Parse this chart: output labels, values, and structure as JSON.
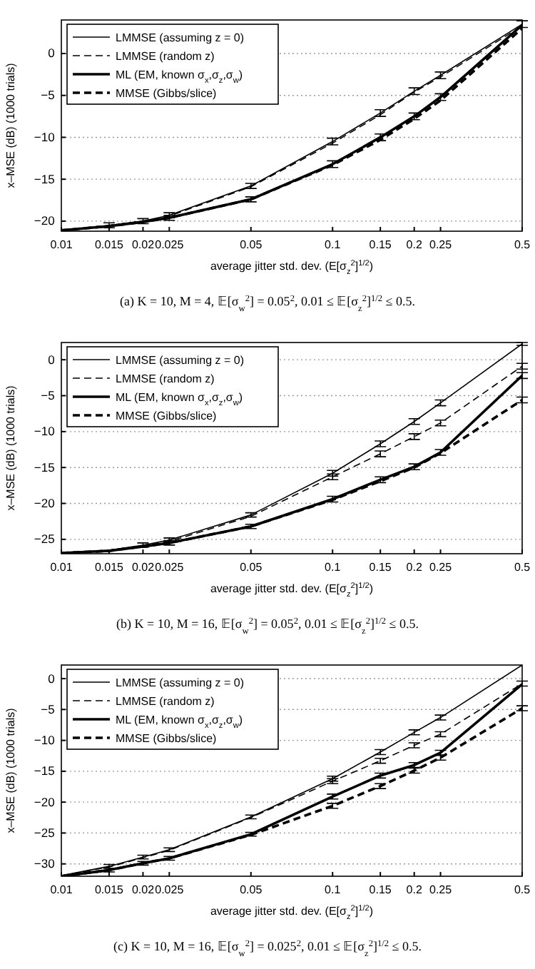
{
  "chart_data": [
    {
      "type": "line",
      "xlabel": "average jitter std. dev. (E[σ$_{z}$$^{2}$]$^{1/2}$)",
      "ylabel": "x–MSE (dB) (1000 trials)",
      "log": "x",
      "grid": "y",
      "legend": "top left",
      "marker": "none",
      "x": [
        0.01,
        0.015,
        0.02,
        0.025,
        0.05,
        0.1,
        0.15,
        0.2,
        0.25,
        0.5
      ],
      "xlim": [
        0.01,
        0.5
      ],
      "xticks": [
        0.01,
        0.015,
        0.02,
        0.025,
        0.05,
        0.1,
        0.15,
        0.2,
        0.25,
        0.5
      ],
      "ylim": [
        -21.2,
        4
      ],
      "yticks": [
        -20,
        -15,
        -10,
        -5,
        0
      ],
      "annotations": [
        "(a) K = 10, M = 4, 𝔼[σ$_{w}$$^{2}$] = 0.05$^{2}$, 0.01 ≤ 𝔼[σ$_{z}$$^{2}$]$^{1/2}$ ≤ 0.5."
      ],
      "series": [
        {
          "name": "LMMSE (assuming z = 0)",
          "color": "#000000",
          "line_style": "solid",
          "values": [
            -21.1,
            -20.5,
            -20.0,
            -19.3,
            -15.8,
            -10.5,
            -7.1,
            -4.5,
            -2.6,
            3.5
          ],
          "errors": [
            null,
            0.3,
            0.3,
            0.3,
            0.3,
            0.4,
            0.4,
            0.4,
            0.4,
            0.4
          ]
        },
        {
          "name": "LMMSE (random z)",
          "color": "#000000",
          "line_style": "dashed",
          "values": [
            -21.1,
            -20.5,
            -20.0,
            -19.4,
            -15.9,
            -10.7,
            -7.3,
            -4.6,
            -2.8,
            3.3
          ],
          "errors": [
            null,
            null,
            null,
            null,
            null,
            null,
            null,
            null,
            null,
            null
          ]
        },
        {
          "name": "ML (EM, known σ$_{x}$,σ$_{z}$,σ$_{w}$)",
          "color": "#000000",
          "line_style": "solid",
          "values": [
            -21.1,
            -20.6,
            -20.1,
            -19.6,
            -17.4,
            -13.2,
            -10.0,
            -7.5,
            -5.2,
            3.4
          ],
          "errors": [
            null,
            null,
            null,
            0.3,
            0.3,
            0.4,
            0.4,
            0.4,
            0.4,
            null
          ]
        },
        {
          "name": "MMSE (Gibbs/slice)",
          "color": "#000000",
          "line_style": "dashed",
          "values": [
            -21.1,
            -20.6,
            -20.1,
            -19.6,
            -17.4,
            -13.3,
            -10.3,
            -7.8,
            -5.6,
            3.0
          ],
          "errors": [
            null,
            null,
            null,
            null,
            null,
            null,
            null,
            null,
            null,
            null
          ]
        }
      ]
    },
    {
      "type": "line",
      "xlabel": "average jitter std. dev. (E[σ$_{z}$$^{2}$]$^{1/2}$)",
      "ylabel": "x–MSE (dB) (1000 trials)",
      "log": "x",
      "grid": "y",
      "legend": "top left",
      "marker": "none",
      "x": [
        0.01,
        0.015,
        0.02,
        0.025,
        0.05,
        0.1,
        0.15,
        0.2,
        0.25,
        0.5
      ],
      "xlim": [
        0.01,
        0.5
      ],
      "xticks": [
        0.01,
        0.015,
        0.02,
        0.025,
        0.05,
        0.1,
        0.15,
        0.2,
        0.25,
        0.5
      ],
      "ylim": [
        -27,
        2.4
      ],
      "yticks": [
        -25,
        -20,
        -15,
        -10,
        -5,
        0
      ],
      "annotations": [
        "(b) K = 10, M = 16, 𝔼[σ$_{w}$$^{2}$] = 0.05$^{2}$, 0.01 ≤ 𝔼[σ$_{z}$$^{2}$]$^{1/2}$ ≤ 0.5."
      ],
      "series": [
        {
          "name": "LMMSE (assuming z = 0)",
          "color": "#000000",
          "line_style": "solid",
          "values": [
            -26.9,
            -26.5,
            -25.8,
            -25.1,
            -21.6,
            -15.8,
            -11.7,
            -8.6,
            -6.0,
            2.2
          ],
          "errors": [
            null,
            null,
            0.3,
            0.3,
            0.3,
            0.4,
            0.4,
            0.4,
            0.4,
            0.2
          ]
        },
        {
          "name": "LMMSE (random z)",
          "color": "#000000",
          "line_style": "dashed",
          "values": [
            -26.9,
            -26.5,
            -25.9,
            -25.3,
            -21.8,
            -16.3,
            -13.1,
            -10.7,
            -8.8,
            -0.9
          ],
          "errors": [
            null,
            null,
            null,
            null,
            null,
            0.4,
            0.4,
            0.4,
            0.4,
            0.4
          ]
        },
        {
          "name": "ML (EM, known σ$_{x}$,σ$_{z}$,σ$_{w}$)",
          "color": "#000000",
          "line_style": "solid",
          "values": [
            -26.9,
            -26.6,
            -26.0,
            -25.5,
            -23.2,
            -19.4,
            -16.7,
            -14.9,
            -12.9,
            -2.2
          ],
          "errors": [
            null,
            null,
            null,
            0.3,
            0.3,
            0.4,
            0.4,
            0.4,
            0.4,
            0.4
          ]
        },
        {
          "name": "MMSE (Gibbs/slice)",
          "color": "#000000",
          "line_style": "dashed",
          "values": [
            -26.9,
            -26.6,
            -26.0,
            -25.5,
            -23.2,
            -19.5,
            -16.9,
            -15.0,
            -13.0,
            -5.6
          ],
          "errors": [
            null,
            null,
            null,
            null,
            null,
            null,
            null,
            null,
            null,
            0.4
          ]
        }
      ]
    },
    {
      "type": "line",
      "xlabel": "average jitter std. dev. (E[σ$_{z}$$^{2}$]$^{1/2}$)",
      "ylabel": "x–MSE (dB) (1000 trials)",
      "log": "x",
      "grid": "y",
      "legend": "top left",
      "marker": "none",
      "x": [
        0.01,
        0.015,
        0.02,
        0.025,
        0.05,
        0.1,
        0.15,
        0.2,
        0.25,
        0.5
      ],
      "xlim": [
        0.01,
        0.5
      ],
      "xticks": [
        0.01,
        0.015,
        0.02,
        0.025,
        0.05,
        0.1,
        0.15,
        0.2,
        0.25,
        0.5
      ],
      "ylim": [
        -32,
        2.2
      ],
      "yticks": [
        -30,
        -25,
        -20,
        -15,
        -10,
        -5,
        0
      ],
      "annotations": [
        "(c) K = 10, M = 16, 𝔼[σ$_{w}$$^{2}$] = 0.025$^{2}$, 0.01 ≤ 𝔼[σ$_{z}$$^{2}$]$^{1/2}$ ≤ 0.5."
      ],
      "series": [
        {
          "name": "LMMSE (assuming z = 0)",
          "color": "#000000",
          "line_style": "solid",
          "values": [
            -31.9,
            -30.4,
            -28.9,
            -27.7,
            -22.4,
            -16.2,
            -11.9,
            -8.7,
            -6.3,
            2.2
          ],
          "errors": [
            null,
            0.3,
            0.3,
            0.3,
            0.3,
            0.4,
            0.4,
            0.4,
            0.4,
            null
          ]
        },
        {
          "name": "LMMSE (random z)",
          "color": "#000000",
          "line_style": "dashed",
          "values": [
            -31.9,
            -30.5,
            -29.0,
            -27.8,
            -22.5,
            -16.6,
            -13.3,
            -10.8,
            -9.0,
            -0.8
          ],
          "errors": [
            null,
            null,
            null,
            null,
            null,
            0.4,
            0.4,
            0.4,
            0.4,
            0.4
          ]
        },
        {
          "name": "ML (EM, known σ$_{x}$,σ$_{z}$,σ$_{w}$)",
          "color": "#000000",
          "line_style": "solid",
          "values": [
            -32.0,
            -31.0,
            -29.9,
            -29.1,
            -25.2,
            -19.1,
            -15.7,
            -14.0,
            -12.0,
            -0.9
          ],
          "errors": [
            null,
            0.3,
            0.3,
            0.3,
            0.3,
            0.4,
            0.4,
            0.4,
            0.4,
            null
          ]
        },
        {
          "name": "MMSE (Gibbs/slice)",
          "color": "#000000",
          "line_style": "dashed",
          "values": [
            -32.0,
            -31.0,
            -29.9,
            -29.1,
            -25.3,
            -20.6,
            -17.4,
            -14.9,
            -12.8,
            -4.8
          ],
          "errors": [
            null,
            null,
            null,
            null,
            null,
            0.4,
            0.4,
            0.4,
            0.4,
            0.4
          ]
        }
      ]
    }
  ]
}
